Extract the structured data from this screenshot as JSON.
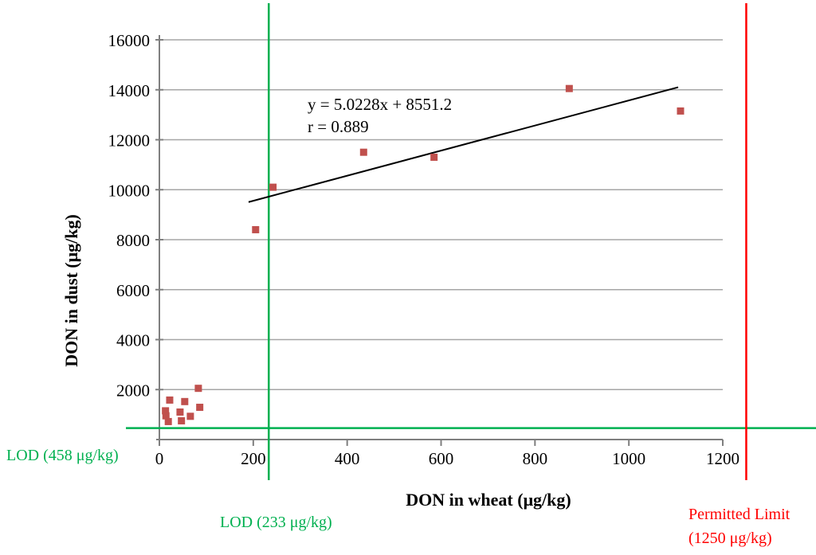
{
  "chart_data": {
    "type": "scatter",
    "title": "",
    "xlabel": "DON in wheat (μg/kg)",
    "ylabel": "DON in dust (μg/kg)",
    "xlim": [
      0,
      1200
    ],
    "ylim": [
      0,
      16000
    ],
    "xticks": [
      0,
      200,
      400,
      600,
      800,
      1000,
      1200
    ],
    "yticks": [
      2000,
      4000,
      6000,
      8000,
      10000,
      12000,
      14000,
      16000
    ],
    "grid": "horizontal-only",
    "legend": "none",
    "marker_color": "#C0504D",
    "gridline_color": "#A6A6A6",
    "axis_color": "#7F7F7F",
    "points": [
      [
        13,
        1150
      ],
      [
        14,
        950
      ],
      [
        19,
        720
      ],
      [
        22,
        1580
      ],
      [
        44,
        1100
      ],
      [
        47,
        750
      ],
      [
        54,
        1520
      ],
      [
        66,
        930
      ],
      [
        83,
        2050
      ],
      [
        86,
        1290
      ],
      [
        205,
        8400
      ],
      [
        242,
        10100
      ],
      [
        435,
        11500
      ],
      [
        585,
        11300
      ],
      [
        873,
        14050
      ],
      [
        1110,
        13150
      ]
    ],
    "trendline": {
      "slope": 5.0228,
      "intercept": 8551.2,
      "x_start": 190,
      "x_end": 1105,
      "color": "#000000",
      "equation": "y = 5.0228x + 8551.2",
      "r_label": "r = 0.889"
    },
    "reference_lines": [
      {
        "id": "lod-wheat",
        "orientation": "vertical",
        "value": 233,
        "color": "#00B050",
        "label": "LOD (233 μg/kg)"
      },
      {
        "id": "lod-dust",
        "orientation": "horizontal",
        "value": 458,
        "color": "#00B050",
        "label": "LOD (458 μg/kg)"
      },
      {
        "id": "permitted-limit",
        "orientation": "vertical",
        "value": 1250,
        "color": "#FF0000",
        "label": "Permitted Limit (1250 μg/kg)"
      }
    ]
  },
  "annotations": {
    "equation_line1": "y = 5.0228x + 8551.2",
    "equation_line2": "r = 0.889",
    "lod_dust_label": "LOD (458 μg/kg)",
    "lod_wheat_label": "LOD (233 μg/kg)",
    "permitted_limit_line1": "Permitted Limit",
    "permitted_limit_line2": "(1250 μg/kg)",
    "xlabel": "DON in wheat (μg/kg)",
    "ylabel": "DON in dust (μg/kg)"
  }
}
